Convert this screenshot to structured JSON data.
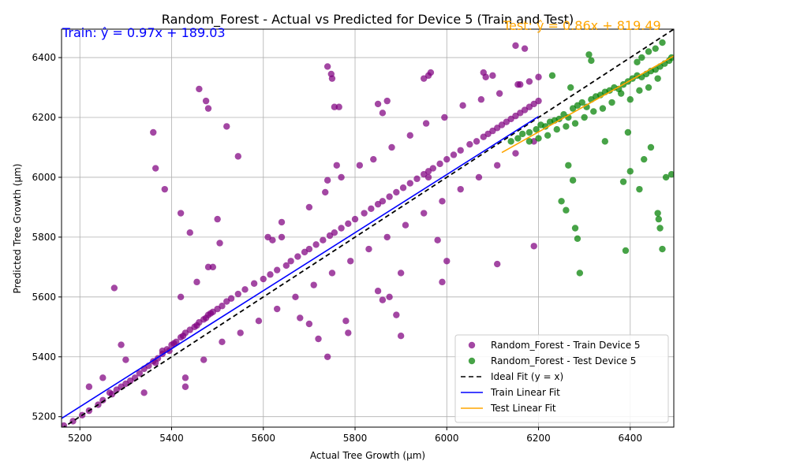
{
  "chart_data": {
    "type": "scatter",
    "title": "Random_Forest - Actual vs Predicted for Device 5 (Train and Test)",
    "xlabel": "Actual Tree Growth (µm)",
    "ylabel": "Predicted Tree Growth (µm)",
    "xlim": [
      5160,
      6495
    ],
    "ylim": [
      5165,
      6495
    ],
    "xticks": [
      5200,
      5400,
      5600,
      5800,
      6000,
      6200,
      6400
    ],
    "yticks": [
      5200,
      5400,
      5600,
      5800,
      6000,
      6200,
      6400
    ],
    "grid": true,
    "legend_position": "lower-right",
    "annotations": {
      "train_eq": "Train: ŷ = 0.97x + 189.03",
      "test_eq": "Test: ŷ = 0.86x + 819.49"
    },
    "colors": {
      "train": "#800080",
      "test": "#008000",
      "ideal": "#000000",
      "train_fit": "#0000ff",
      "test_fit": "#ffa500",
      "train_eq": "#0000ff",
      "test_eq": "#ffa500"
    },
    "series": [
      {
        "name": "Random_Forest - Train Device 5",
        "kind": "scatter",
        "color": "#800080",
        "x": [
          5165,
          5185,
          5205,
          5220,
          5240,
          5250,
          5265,
          5270,
          5280,
          5290,
          5300,
          5310,
          5320,
          5330,
          5340,
          5350,
          5360,
          5365,
          5370,
          5380,
          5390,
          5395,
          5400,
          5405,
          5410,
          5420,
          5425,
          5430,
          5440,
          5450,
          5455,
          5460,
          5470,
          5475,
          5480,
          5485,
          5490,
          5500,
          5510,
          5520,
          5530,
          5545,
          5560,
          5580,
          5600,
          5615,
          5630,
          5650,
          5660,
          5675,
          5690,
          5700,
          5715,
          5730,
          5745,
          5755,
          5770,
          5785,
          5800,
          5820,
          5835,
          5850,
          5860,
          5875,
          5890,
          5905,
          5920,
          5935,
          5950,
          5960,
          5970,
          5985,
          6000,
          6015,
          6030,
          6050,
          6065,
          6080,
          6090,
          6100,
          6110,
          6120,
          6130,
          6140,
          6150,
          6160,
          6170,
          6180,
          6190,
          6200,
          5275,
          5290,
          5360,
          5365,
          5385,
          5420,
          5430,
          5440,
          5460,
          5475,
          5480,
          5520,
          5545,
          5740,
          5748,
          5750,
          5755,
          5765,
          5850,
          5860,
          5870,
          5965,
          5960,
          5950,
          6080,
          6085,
          6100,
          6150,
          6160,
          6170,
          5480,
          5500,
          5505,
          5620,
          5640,
          5740,
          5760,
          5785,
          5860,
          5875,
          5890,
          5900,
          5960,
          5990,
          6000,
          5740,
          5780,
          5720,
          5680,
          5700,
          5900,
          5850,
          5980,
          6110,
          6190,
          5220,
          5250,
          5300,
          5340,
          5380,
          5430,
          5470,
          5510,
          5550,
          5590,
          5630,
          5670,
          5710,
          5750,
          5790,
          5830,
          5870,
          5910,
          5950,
          5990,
          6030,
          6070,
          6110,
          6150,
          6190,
          5420,
          5455,
          5490,
          5610,
          5640,
          5700,
          5735,
          5770,
          5810,
          5840,
          5880,
          5920,
          5955,
          5995,
          6035,
          6075,
          6115,
          6155,
          6180,
          6200
        ],
        "y": [
          5170,
          5185,
          5205,
          5220,
          5240,
          5255,
          5280,
          5275,
          5290,
          5300,
          5310,
          5320,
          5330,
          5345,
          5360,
          5370,
          5385,
          5380,
          5395,
          5410,
          5425,
          5420,
          5440,
          5445,
          5450,
          5465,
          5470,
          5480,
          5490,
          5500,
          5505,
          5515,
          5525,
          5530,
          5540,
          5545,
          5550,
          5560,
          5570,
          5585,
          5595,
          5610,
          5625,
          5645,
          5660,
          5675,
          5690,
          5705,
          5720,
          5735,
          5750,
          5760,
          5775,
          5790,
          5805,
          5815,
          5830,
          5845,
          5860,
          5880,
          5895,
          5910,
          5920,
          5935,
          5950,
          5965,
          5980,
          5995,
          6010,
          6020,
          6030,
          6045,
          6060,
          6075,
          6090,
          6110,
          6120,
          6135,
          6145,
          6155,
          6165,
          6175,
          6185,
          6195,
          6205,
          6215,
          6225,
          6235,
          6245,
          6255,
          5630,
          5440,
          6150,
          6030,
          5960,
          5880,
          5300,
          5815,
          6295,
          6255,
          6230,
          6170,
          6070,
          6370,
          6345,
          6330,
          6235,
          6235,
          6245,
          6215,
          6255,
          6350,
          6340,
          6330,
          6350,
          6335,
          6340,
          6440,
          6310,
          6430,
          5700,
          5860,
          5780,
          5790,
          5800,
          5990,
          6040,
          5480,
          5590,
          5600,
          5540,
          5470,
          6000,
          5650,
          5720,
          5400,
          5520,
          5460,
          5530,
          5510,
          5680,
          5620,
          5790,
          5710,
          5770,
          5300,
          5330,
          5390,
          5280,
          5420,
          5330,
          5390,
          5450,
          5480,
          5520,
          5560,
          5600,
          5640,
          5680,
          5720,
          5760,
          5800,
          5840,
          5880,
          5920,
          5960,
          6000,
          6040,
          6080,
          6120,
          5600,
          5650,
          5700,
          5800,
          5850,
          5900,
          5950,
          6000,
          6040,
          6060,
          6100,
          6140,
          6180,
          6200,
          6240,
          6260,
          6280,
          6310,
          6320,
          6335
        ]
      },
      {
        "name": "Random_Forest - Test Device 5",
        "kind": "scatter",
        "color": "#008000",
        "x": [
          6140,
          6155,
          6165,
          6180,
          6195,
          6205,
          6215,
          6225,
          6235,
          6245,
          6255,
          6265,
          6275,
          6285,
          6295,
          6305,
          6315,
          6325,
          6335,
          6345,
          6355,
          6365,
          6375,
          6385,
          6395,
          6405,
          6415,
          6425,
          6435,
          6445,
          6455,
          6465,
          6475,
          6485,
          6490,
          6460,
          6440,
          6420,
          6400,
          6380,
          6360,
          6340,
          6320,
          6300,
          6280,
          6260,
          6240,
          6220,
          6200,
          6180,
          6265,
          6275,
          6280,
          6285,
          6290,
          6250,
          6260,
          6390,
          6385,
          6400,
          6420,
          6430,
          6445,
          6460,
          6462,
          6465,
          6470,
          6490,
          6478,
          6395,
          6345,
          6310,
          6315,
          6270,
          6230,
          6470,
          6455,
          6440,
          6425,
          6415
        ],
        "y": [
          6120,
          6130,
          6145,
          6150,
          6160,
          6175,
          6170,
          6185,
          6190,
          6195,
          6210,
          6200,
          6230,
          6240,
          6250,
          6235,
          6260,
          6270,
          6275,
          6285,
          6290,
          6300,
          6295,
          6310,
          6320,
          6330,
          6340,
          6335,
          6345,
          6355,
          6360,
          6370,
          6380,
          6390,
          6400,
          6330,
          6300,
          6290,
          6260,
          6280,
          6250,
          6230,
          6220,
          6200,
          6180,
          6170,
          6160,
          6140,
          6130,
          6120,
          6040,
          5990,
          5830,
          5795,
          5680,
          5920,
          5890,
          5755,
          5985,
          6020,
          5960,
          6060,
          6100,
          5880,
          5860,
          5830,
          5760,
          6010,
          6000,
          6150,
          6120,
          6410,
          6390,
          6300,
          6340,
          6450,
          6430,
          6420,
          6400,
          6385
        ]
      },
      {
        "name": "Ideal Fit (y = x)",
        "kind": "line",
        "color": "#000000",
        "dash": true,
        "x": [
          5160,
          6495
        ],
        "y": [
          5160,
          6495
        ]
      },
      {
        "name": "Train Linear Fit",
        "kind": "line",
        "color": "#0000ff",
        "x": [
          5160,
          6200
        ],
        "y": [
          5194.23,
          6203.03
        ]
      },
      {
        "name": "Test Linear Fit",
        "kind": "line",
        "color": "#ffa500",
        "x": [
          6120,
          6495
        ],
        "y": [
          6082.69,
          6405.19
        ]
      }
    ]
  }
}
